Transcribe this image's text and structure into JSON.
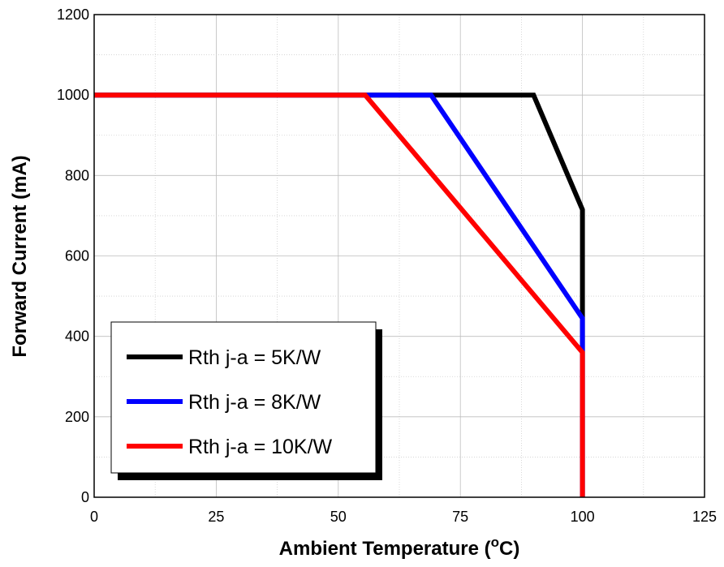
{
  "chart_data": {
    "type": "line",
    "xlabel_main": "Ambient Temperature (",
    "xlabel_sup": "o",
    "xlabel_end": "C)",
    "ylabel": "Forward Current (mA)",
    "xlim": [
      0,
      125
    ],
    "ylim": [
      0,
      1200
    ],
    "xticks": [
      0,
      25,
      50,
      75,
      100,
      125
    ],
    "yticks": [
      0,
      200,
      400,
      600,
      800,
      1000,
      1200
    ],
    "xtick_labels": [
      "0",
      "25",
      "50",
      "75",
      "100",
      "125"
    ],
    "ytick_labels": [
      "0",
      "200",
      "400",
      "600",
      "800",
      "1000",
      "1200"
    ],
    "grid": true,
    "legend_position": "bottom-left",
    "series": [
      {
        "name": "Rth j-a = 5K/W",
        "color": "#000000",
        "x": [
          0,
          90,
          100,
          100
        ],
        "y": [
          1000,
          1000,
          715,
          0
        ]
      },
      {
        "name": "Rth j-a = 8K/W",
        "color": "#0000ff",
        "x": [
          0,
          69,
          100,
          100
        ],
        "y": [
          1000,
          1000,
          445,
          0
        ]
      },
      {
        "name": "Rth j-a = 10K/W",
        "color": "#ff0000",
        "x": [
          0,
          55.5,
          100,
          100
        ],
        "y": [
          1000,
          1000,
          360,
          0
        ]
      }
    ]
  }
}
